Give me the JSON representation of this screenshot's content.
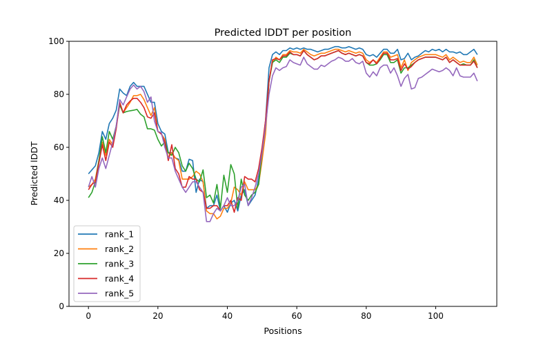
{
  "chart_data": {
    "type": "line",
    "title": "Predicted lDDT per position",
    "xlabel": "Positions",
    "ylabel": "Predicted lDDT",
    "xlim": [
      -5.6,
      117.6
    ],
    "ylim": [
      0,
      100
    ],
    "xticks": [
      0,
      20,
      40,
      60,
      80,
      100
    ],
    "yticks": [
      0,
      20,
      40,
      60,
      80,
      100
    ],
    "grid": false,
    "legend_position": "lower-left",
    "x_start": 0,
    "series": [
      {
        "name": "rank_1",
        "color": "#1f77b4",
        "values": [
          50,
          51.5,
          53,
          58,
          66,
          63,
          69,
          71,
          74,
          82,
          80.5,
          79.5,
          83,
          84.5,
          83,
          83,
          83,
          80,
          77,
          77,
          69,
          66,
          65,
          58,
          58,
          56,
          55.5,
          51,
          51,
          55.5,
          55,
          43,
          48,
          47,
          37,
          38,
          38,
          42,
          36,
          38,
          35.5,
          39,
          40,
          36,
          42,
          44,
          38,
          40,
          42,
          48,
          58,
          70,
          90,
          95,
          96,
          95,
          96.5,
          96.5,
          97.5,
          97,
          97.5,
          97,
          97.5,
          97,
          97,
          96.5,
          96,
          96.5,
          97,
          97,
          97.5,
          98,
          98,
          97.5,
          97.5,
          98,
          97.5,
          97,
          97.5,
          97,
          95,
          94.5,
          95,
          94,
          95.5,
          97,
          97,
          95.5,
          95.5,
          97,
          93,
          93.5,
          95.5,
          93,
          94,
          94.5,
          95.5,
          96.5,
          96,
          97,
          96.5,
          97,
          96,
          97,
          96,
          96,
          95.5,
          96,
          95,
          95,
          96,
          97,
          95
        ]
      },
      {
        "name": "rank_2",
        "color": "#ff7f0e",
        "values": [
          45,
          46,
          48,
          55,
          62,
          57,
          63,
          61,
          68,
          77,
          73,
          75,
          77,
          79.5,
          79.5,
          80,
          78,
          75,
          72,
          75,
          66,
          65,
          63,
          56,
          58,
          56,
          55,
          48,
          48,
          48,
          49,
          51,
          50,
          47,
          36,
          35,
          35,
          33,
          34,
          37,
          37,
          39,
          45,
          44,
          42,
          47,
          44,
          44,
          44,
          46,
          55,
          65,
          85,
          92,
          94,
          93,
          95,
          95,
          96.5,
          96,
          96,
          95.5,
          97,
          96,
          95,
          94.5,
          95,
          95.5,
          95.5,
          96,
          96.5,
          97,
          97,
          96.5,
          96,
          96.5,
          96,
          95.5,
          96,
          95.5,
          93,
          92,
          93,
          92,
          94,
          96,
          96,
          94,
          94.5,
          95,
          90,
          93,
          89,
          92,
          93,
          94,
          94.5,
          95,
          95,
          95,
          95,
          94.5,
          94,
          95,
          93,
          94,
          93,
          92,
          92.5,
          92,
          92,
          94,
          91
        ]
      },
      {
        "name": "rank_3",
        "color": "#2ca02c",
        "values": [
          41,
          43,
          47,
          55,
          64,
          58,
          66,
          63,
          68,
          76,
          73,
          73.5,
          73.8,
          74,
          74.3,
          72.5,
          71.5,
          67,
          67,
          66.5,
          63,
          60.5,
          62,
          58,
          57,
          60,
          58,
          53,
          51,
          54,
          52,
          48,
          47,
          51.5,
          41,
          42,
          39,
          46,
          37,
          49.5,
          43,
          53.5,
          50,
          37,
          48,
          42,
          40,
          42,
          43,
          46,
          58,
          68,
          85,
          92,
          93,
          92,
          94,
          94,
          95.5,
          95,
          95,
          94.5,
          96.5,
          95,
          94,
          93,
          93.5,
          94.5,
          94.5,
          95,
          95.5,
          96,
          96.5,
          95.5,
          95,
          95.5,
          95,
          94.5,
          95,
          94.5,
          92,
          91,
          91,
          91.5,
          93,
          95,
          95,
          92,
          92,
          93,
          88,
          90,
          90,
          91,
          92,
          93,
          93.5,
          94,
          94,
          94,
          94,
          93.5,
          93,
          94,
          92,
          93,
          92,
          91,
          91.5,
          91,
          91,
          93,
          90
        ]
      },
      {
        "name": "rank_4",
        "color": "#d62728",
        "values": [
          44,
          46,
          47,
          54,
          61,
          55,
          62,
          60,
          67,
          77,
          73,
          76,
          77.5,
          78.5,
          78.5,
          77,
          75,
          71.5,
          71,
          73,
          66,
          65,
          62,
          55,
          61,
          52,
          50,
          45,
          45,
          49,
          48,
          48,
          44,
          43,
          37,
          37,
          38,
          38,
          36,
          38,
          38,
          40,
          35.5,
          41,
          40,
          49,
          48,
          48,
          47,
          52,
          60,
          70,
          85,
          93,
          93.5,
          93,
          94.5,
          94.5,
          96,
          95,
          95,
          94.5,
          96.5,
          95,
          94,
          93,
          93.5,
          94.5,
          94.5,
          95,
          95.5,
          96,
          96.5,
          95.5,
          95,
          95.5,
          95,
          94.5,
          95,
          94.5,
          92,
          91.5,
          93,
          91.5,
          93.5,
          95.5,
          95.5,
          93,
          93,
          93.5,
          89,
          91.5,
          89.5,
          90.5,
          92,
          93,
          93.5,
          94,
          94,
          94,
          94,
          93.5,
          93,
          94,
          92,
          93,
          92,
          91,
          91,
          91,
          91,
          92.5,
          90
        ]
      },
      {
        "name": "rank_5",
        "color": "#9467bd",
        "values": [
          45,
          49,
          45,
          52,
          56,
          52,
          57,
          62,
          68,
          78,
          76,
          79,
          82,
          83.5,
          82,
          83,
          81,
          77,
          79,
          70,
          66,
          65.5,
          60,
          56,
          56,
          51,
          48,
          45,
          43,
          45,
          47,
          47,
          45,
          43,
          32,
          32,
          35,
          37,
          36,
          38,
          41,
          38,
          38,
          40,
          45,
          46,
          38,
          41,
          45,
          50,
          58,
          68,
          80,
          87,
          90,
          89,
          90,
          90.5,
          93,
          92,
          91.5,
          91,
          94,
          91.5,
          90.5,
          89.5,
          89.5,
          91,
          90.5,
          91.5,
          92.5,
          93,
          94,
          93.5,
          92.5,
          92.5,
          93.5,
          92,
          91.5,
          92.5,
          88,
          86.5,
          88.5,
          87,
          90,
          91,
          91,
          88,
          90,
          87,
          83,
          86,
          87.5,
          82,
          82.5,
          86,
          86.5,
          87.5,
          88.5,
          89.5,
          89,
          88.5,
          89,
          90,
          89,
          87,
          90,
          87,
          86.5,
          86.5,
          86.5,
          88,
          85
        ]
      }
    ]
  }
}
